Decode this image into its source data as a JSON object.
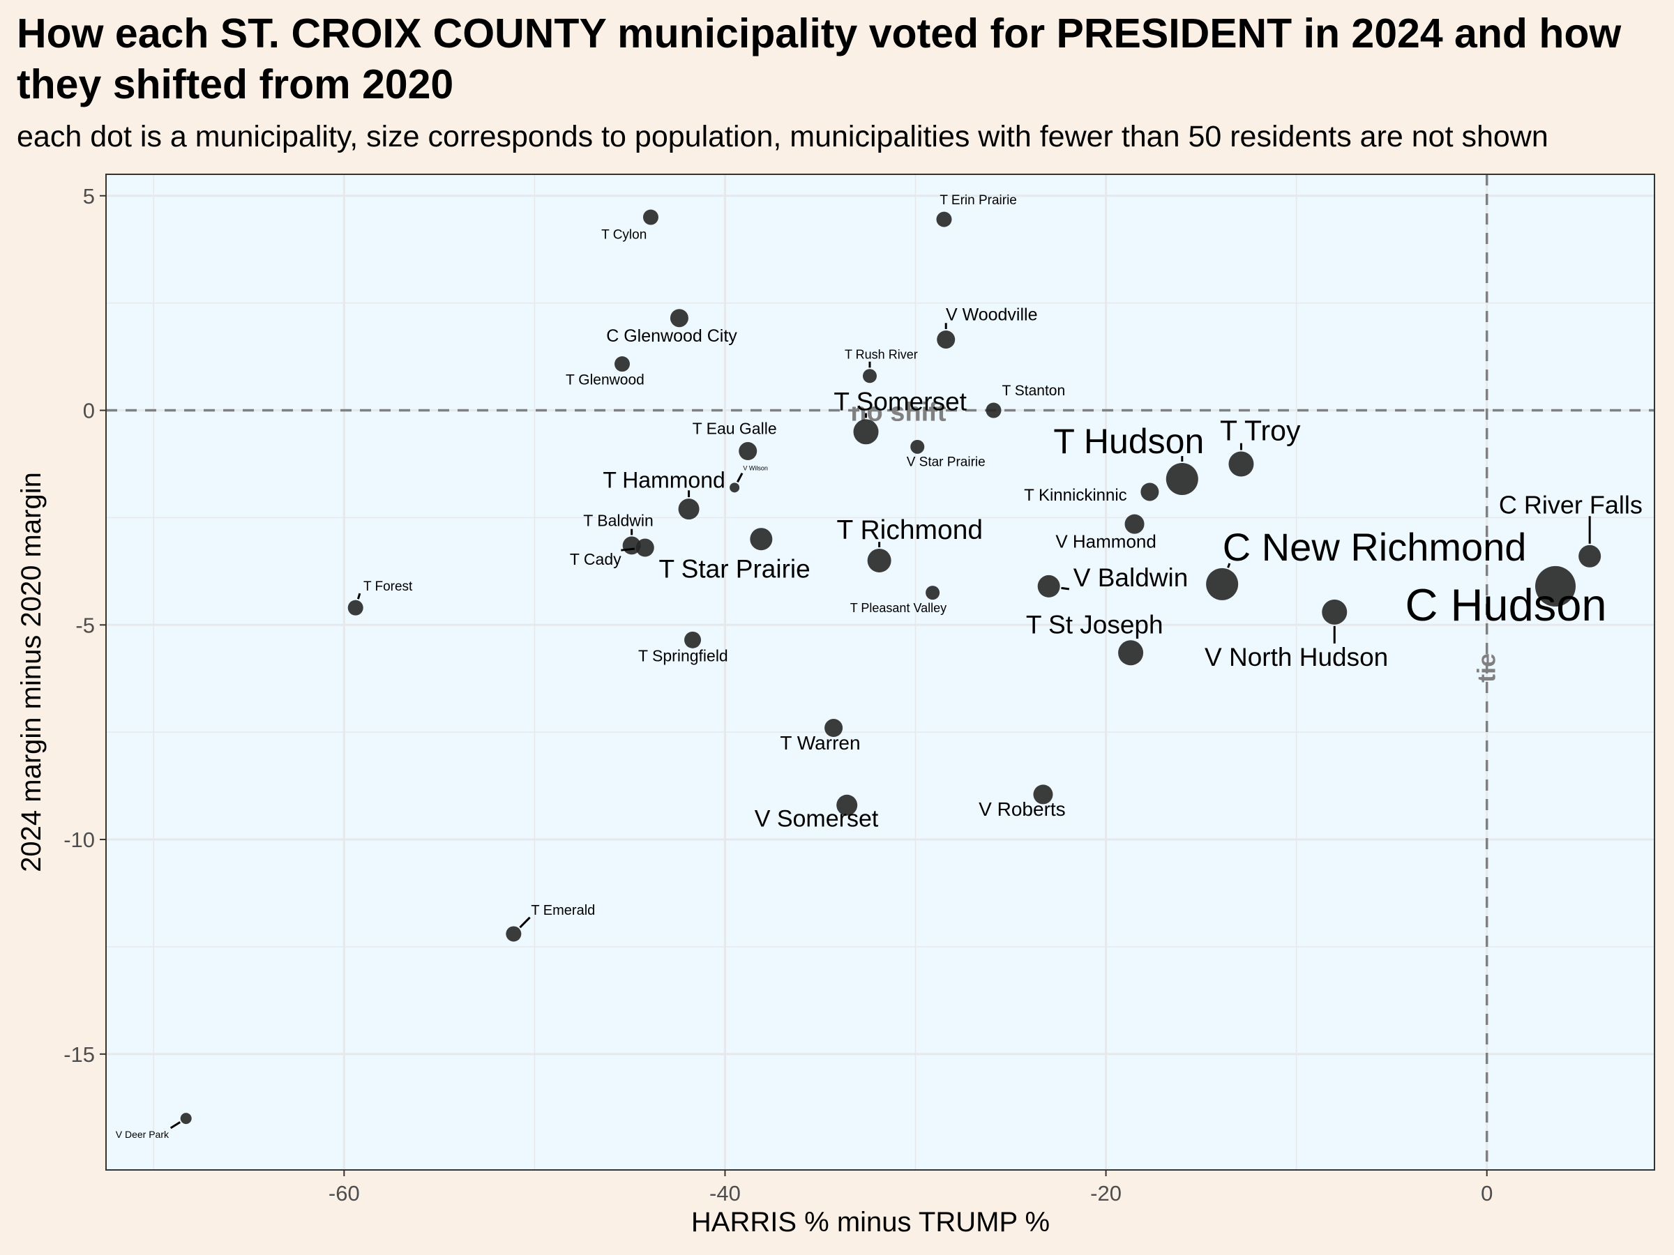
{
  "title": "How each ST. CROIX COUNTY municipality voted for PRESIDENT in 2024 and how they shifted from 2020",
  "subtitle": "each dot is a municipality, size corresponds to population, municipalities with fewer than 50 residents are not shown",
  "colors": {
    "page_background": "#fbf0e5",
    "panel_background": "#eef8ff",
    "grid": "#e6e9ec",
    "point": "#262626",
    "reference_line": "#808080"
  },
  "chart_data": {
    "type": "scatter",
    "xlabel": "HARRIS % minus TRUMP %",
    "ylabel": "2024 margin minus 2020 margin",
    "xlim": [
      -72.5,
      8.8
    ],
    "ylim": [
      -17.7,
      5.5
    ],
    "x_ticks": [
      -60,
      -40,
      -20,
      0
    ],
    "x_tick_labels": [
      "-60",
      "-40",
      "-20",
      "0"
    ],
    "y_ticks": [
      5,
      0,
      -5,
      -10,
      -15
    ],
    "y_tick_labels": [
      "5",
      "0",
      "-5",
      "-10",
      "-15"
    ],
    "grid": true,
    "legend": "none",
    "reference_lines": [
      {
        "axis": "y",
        "value": 0,
        "label": "no shift"
      },
      {
        "axis": "x",
        "value": 0,
        "label": "tie"
      }
    ],
    "points": [
      {
        "name": "T Cylon",
        "x": -43.9,
        "y": 4.5,
        "size": 11,
        "lx": -45.3,
        "ly": 4.0,
        "fs": 19
      },
      {
        "name": "T Erin Prairie",
        "x": -28.5,
        "y": 4.45,
        "size": 11,
        "lx": -26.7,
        "ly": 4.8,
        "fs": 19
      },
      {
        "name": "C Glenwood City",
        "x": -42.4,
        "y": 2.15,
        "size": 13,
        "lx": -42.8,
        "ly": 1.6,
        "fs": 25
      },
      {
        "name": "V Woodville",
        "x": -28.4,
        "y": 1.65,
        "size": 13,
        "lx": -26.0,
        "ly": 2.1,
        "fs": 25
      },
      {
        "name": "T Glenwood",
        "x": -45.4,
        "y": 1.08,
        "size": 11,
        "lx": -46.3,
        "ly": 0.6,
        "fs": 21
      },
      {
        "name": "T Rush River",
        "x": -32.4,
        "y": 0.8,
        "size": 10,
        "lx": -31.8,
        "ly": 1.2,
        "fs": 18
      },
      {
        "name": "T Stanton",
        "x": -25.9,
        "y": 0.0,
        "size": 11,
        "lx": -23.8,
        "ly": 0.35,
        "fs": 21
      },
      {
        "name": "T Somerset",
        "x": -32.6,
        "y": -0.5,
        "size": 18,
        "lx": -30.8,
        "ly": 0.0,
        "fs": 37
      },
      {
        "name": "T Eau Galle",
        "x": -38.8,
        "y": -0.95,
        "size": 13,
        "lx": -39.5,
        "ly": -0.55,
        "fs": 23
      },
      {
        "name": "V Star Prairie",
        "x": -29.9,
        "y": -0.85,
        "size": 10,
        "lx": -28.4,
        "ly": -1.3,
        "fs": 19
      },
      {
        "name": "T Hudson",
        "x": -16.0,
        "y": -1.6,
        "size": 23,
        "lx": -18.8,
        "ly": -1.0,
        "fs": 50
      },
      {
        "name": "T Troy",
        "x": -12.9,
        "y": -1.25,
        "size": 18,
        "lx": -11.9,
        "ly": -0.7,
        "fs": 41
      },
      {
        "name": "V Wilson",
        "x": -39.5,
        "y": -1.8,
        "size": 7,
        "lx": -38.4,
        "ly": -1.4,
        "fs": 9
      },
      {
        "name": "T Kinnickinnic",
        "x": -17.7,
        "y": -1.9,
        "size": 13,
        "lx": -21.6,
        "ly": -2.1,
        "fs": 24
      },
      {
        "name": "T Hammond",
        "x": -41.9,
        "y": -2.3,
        "size": 15,
        "lx": -43.2,
        "ly": -1.8,
        "fs": 32
      },
      {
        "name": "V Hammond",
        "x": -18.5,
        "y": -2.65,
        "size": 14,
        "lx": -20.0,
        "ly": -3.2,
        "fs": 26
      },
      {
        "name": "T Baldwin",
        "x": -44.9,
        "y": -3.15,
        "size": 13,
        "lx": -45.6,
        "ly": -2.7,
        "fs": 23
      },
      {
        "name": "T Cady",
        "x": -44.2,
        "y": -3.2,
        "size": 13,
        "lx": -46.8,
        "ly": -3.6,
        "fs": 23
      },
      {
        "name": "T Star Prairie",
        "x": -38.1,
        "y": -3.0,
        "size": 16,
        "lx": -39.5,
        "ly": -3.9,
        "fs": 37
      },
      {
        "name": "T Richmond",
        "x": -31.9,
        "y": -3.5,
        "size": 17,
        "lx": -30.3,
        "ly": -3.0,
        "fs": 39
      },
      {
        "name": "C River Falls",
        "x": 5.4,
        "y": -3.4,
        "size": 16,
        "lx": 4.4,
        "ly": -2.4,
        "fs": 36
      },
      {
        "name": "C New Richmond",
        "x": -13.9,
        "y": -4.05,
        "size": 23,
        "lx": -5.9,
        "ly": -3.5,
        "fs": 56
      },
      {
        "name": "C Hudson",
        "x": 3.6,
        "y": -4.1,
        "size": 29,
        "lx": 1.0,
        "ly": -4.9,
        "fs": 65
      },
      {
        "name": "V Baldwin",
        "x": -23.0,
        "y": -4.1,
        "size": 16,
        "lx": -18.7,
        "ly": -4.1,
        "fs": 37
      },
      {
        "name": "T Pleasant Valley",
        "x": -29.1,
        "y": -4.25,
        "size": 10,
        "lx": -30.9,
        "ly": -4.7,
        "fs": 18
      },
      {
        "name": "T Forest",
        "x": -59.4,
        "y": -4.6,
        "size": 11,
        "lx": -57.7,
        "ly": -4.2,
        "fs": 19
      },
      {
        "name": "V North Hudson",
        "x": -8.0,
        "y": -4.7,
        "size": 18,
        "lx": -10.0,
        "ly": -5.95,
        "fs": 37
      },
      {
        "name": "T Springfield",
        "x": -41.7,
        "y": -5.35,
        "size": 12,
        "lx": -42.2,
        "ly": -5.85,
        "fs": 23
      },
      {
        "name": "T St Joseph",
        "x": -18.7,
        "y": -5.65,
        "size": 18,
        "lx": -20.6,
        "ly": -5.2,
        "fs": 37
      },
      {
        "name": "T Warren",
        "x": -34.3,
        "y": -7.4,
        "size": 13,
        "lx": -35.0,
        "ly": -7.9,
        "fs": 28
      },
      {
        "name": "V Somerset",
        "x": -33.6,
        "y": -9.2,
        "size": 15,
        "lx": -35.2,
        "ly": -9.7,
        "fs": 34
      },
      {
        "name": "V Roberts",
        "x": -23.3,
        "y": -8.95,
        "size": 14,
        "lx": -24.4,
        "ly": -9.45,
        "fs": 28
      },
      {
        "name": "T Emerald",
        "x": -51.1,
        "y": -12.2,
        "size": 11,
        "lx": -48.5,
        "ly": -11.75,
        "fs": 20
      },
      {
        "name": "V Deer Park",
        "x": -68.3,
        "y": -16.5,
        "size": 8,
        "lx": -70.6,
        "ly": -16.95,
        "fs": 14
      }
    ]
  }
}
